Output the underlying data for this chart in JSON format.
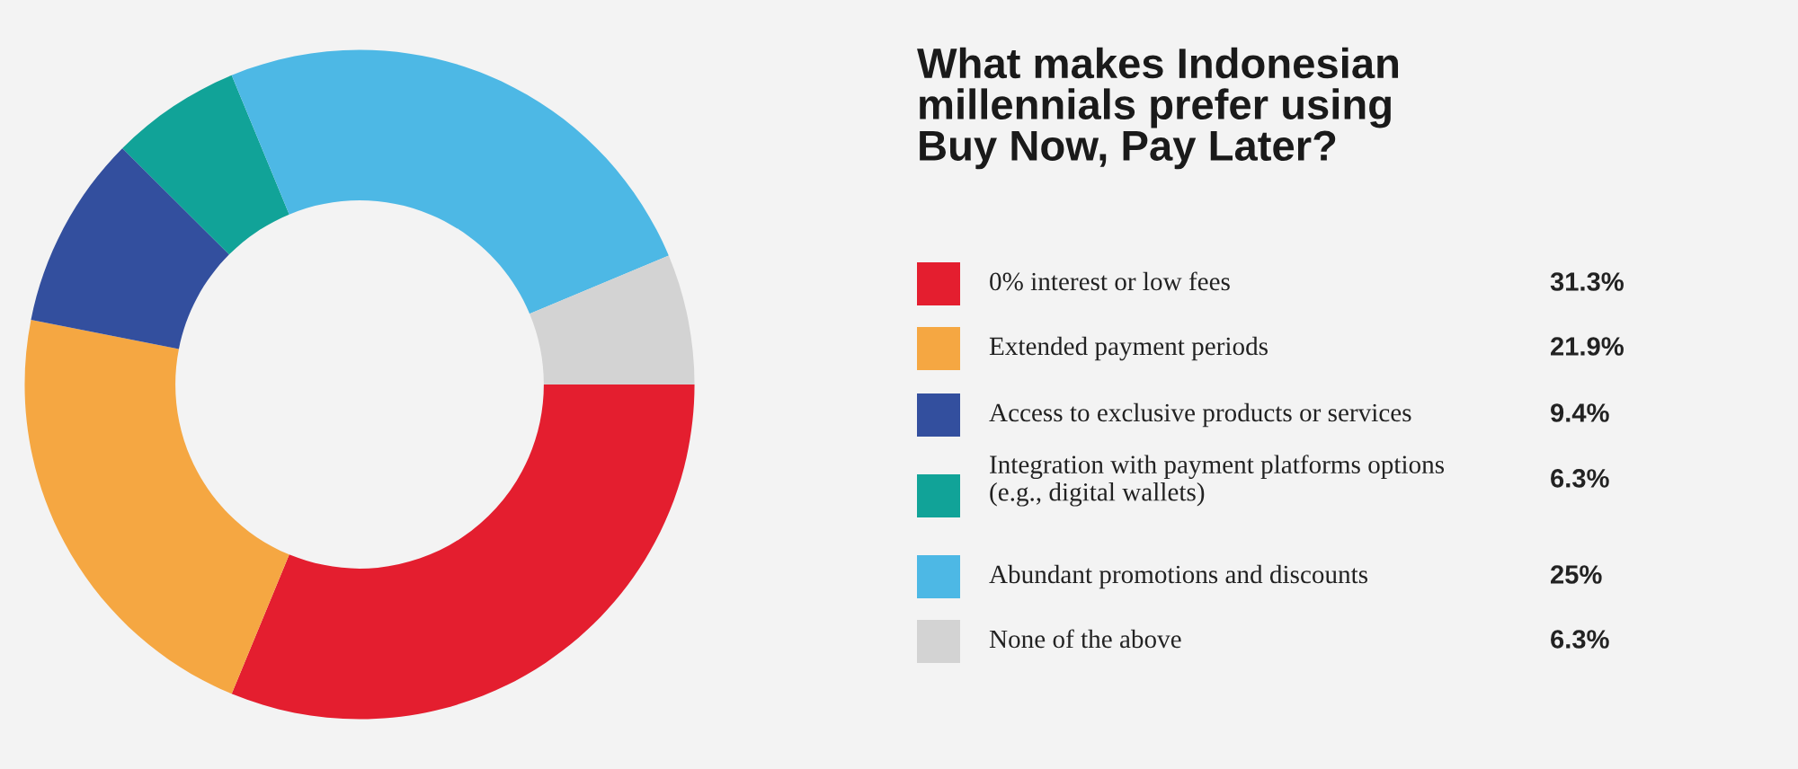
{
  "chart_data": {
    "type": "donut",
    "title": "What makes Indonesian\nmillennials prefer using\nBuy Now, Pay Later?",
    "categories": [
      "0% interest or low fees",
      "Extended payment periods",
      "Access to exclusive products or services",
      "Integration with payment platforms options\n(e.g., digital wallets)",
      "Abundant promotions and discounts",
      "None of the above"
    ],
    "values": [
      31.3,
      21.9,
      9.4,
      6.3,
      25,
      6.3
    ],
    "colors": [
      "#e41e2f",
      "#f5a742",
      "#334f9e",
      "#11a398",
      "#4db8e5",
      "#d3d3d3"
    ],
    "value_labels": [
      "31.3%",
      "21.9%",
      "9.4%",
      "6.3%",
      "25%",
      "6.3%"
    ],
    "legend": "right"
  }
}
